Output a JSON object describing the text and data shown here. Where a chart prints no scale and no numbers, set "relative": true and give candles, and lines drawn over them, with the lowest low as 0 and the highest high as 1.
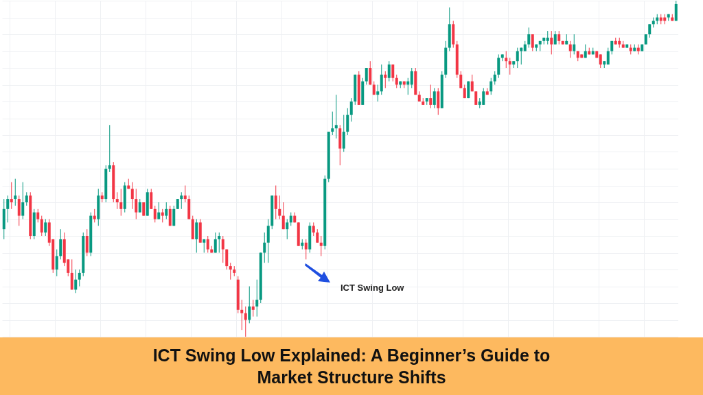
{
  "chart_data": {
    "type": "candlestick",
    "title": "ICT Swing Low Explained: A Beginner’s Guide to Market Structure Shifts",
    "relative": true,
    "grid": true,
    "tick_labels": false,
    "annotations": [
      "ICT Swing Low"
    ],
    "categories": [
      null,
      null,
      null,
      null,
      null,
      null,
      null,
      null,
      null,
      null,
      null,
      null,
      null,
      null,
      null,
      null,
      null,
      null,
      null,
      null,
      null,
      null,
      null,
      null,
      null,
      null,
      null,
      null,
      null,
      null,
      null,
      null,
      null,
      null,
      null,
      null,
      null,
      null,
      null,
      null,
      null,
      null,
      null,
      null,
      null,
      null,
      null,
      null,
      null,
      null,
      null,
      null,
      null,
      null,
      null,
      null,
      null,
      null,
      null,
      null,
      null,
      null,
      null,
      null,
      null,
      null,
      null,
      null,
      null,
      null,
      null,
      null,
      null,
      null,
      null,
      null,
      null,
      null,
      null,
      null,
      null,
      null,
      null,
      null,
      null,
      null,
      null,
      null,
      null,
      null,
      null,
      null,
      null,
      null,
      null,
      null,
      null,
      null,
      null,
      null,
      null,
      null,
      null,
      null,
      null,
      null,
      null,
      null,
      null,
      null,
      null,
      null,
      null,
      null,
      null,
      null,
      null,
      null,
      null,
      null,
      null,
      null,
      null,
      null,
      null,
      null,
      null,
      null,
      null,
      null,
      null,
      null,
      null,
      null,
      null,
      null,
      null,
      null,
      null,
      null,
      null,
      null,
      null,
      null,
      null,
      null,
      null,
      null,
      null,
      null,
      null,
      null,
      null,
      null,
      null,
      null,
      null,
      null,
      null,
      null,
      null,
      null,
      null,
      null,
      null,
      null,
      null,
      null,
      null,
      null,
      null,
      null,
      null,
      null,
      null,
      null,
      null,
      null,
      null
    ],
    "ohlc": [
      [
        0.32,
        0.41,
        0.29,
        0.38
      ],
      [
        0.38,
        0.42,
        0.34,
        0.41
      ],
      [
        0.41,
        0.46,
        0.38,
        0.4
      ],
      [
        0.41,
        0.47,
        0.39,
        0.42
      ],
      [
        0.41,
        0.42,
        0.33,
        0.36
      ],
      [
        0.36,
        0.46,
        0.35,
        0.4
      ],
      [
        0.4,
        0.43,
        0.39,
        0.42
      ],
      [
        0.42,
        0.43,
        0.29,
        0.3
      ],
      [
        0.3,
        0.38,
        0.29,
        0.37
      ],
      [
        0.37,
        0.38,
        0.34,
        0.35
      ],
      [
        0.35,
        0.36,
        0.3,
        0.31
      ],
      [
        0.31,
        0.35,
        0.3,
        0.34
      ],
      [
        0.34,
        0.35,
        0.27,
        0.28
      ],
      [
        0.29,
        0.29,
        0.19,
        0.2
      ],
      [
        0.2,
        0.26,
        0.18,
        0.24
      ],
      [
        0.24,
        0.32,
        0.23,
        0.29
      ],
      [
        0.29,
        0.31,
        0.21,
        0.22
      ],
      [
        0.23,
        0.23,
        0.18,
        0.19
      ],
      [
        0.19,
        0.23,
        0.14,
        0.14
      ],
      [
        0.14,
        0.2,
        0.13,
        0.17
      ],
      [
        0.17,
        0.2,
        0.15,
        0.19
      ],
      [
        0.19,
        0.31,
        0.18,
        0.3
      ],
      [
        0.3,
        0.32,
        0.24,
        0.25
      ],
      [
        0.25,
        0.37,
        0.24,
        0.36
      ],
      [
        0.36,
        0.38,
        0.34,
        0.35
      ],
      [
        0.35,
        0.44,
        0.33,
        0.42
      ],
      [
        0.42,
        0.43,
        0.4,
        0.41
      ],
      [
        0.41,
        0.51,
        0.4,
        0.5
      ],
      [
        0.5,
        0.63,
        0.49,
        0.51
      ],
      [
        0.51,
        0.52,
        0.4,
        0.41
      ],
      [
        0.41,
        0.43,
        0.38,
        0.4
      ],
      [
        0.4,
        0.44,
        0.36,
        0.38
      ],
      [
        0.38,
        0.46,
        0.37,
        0.45
      ],
      [
        0.45,
        0.47,
        0.44,
        0.44
      ],
      [
        0.44,
        0.46,
        0.38,
        0.41
      ],
      [
        0.41,
        0.44,
        0.35,
        0.37
      ],
      [
        0.37,
        0.41,
        0.37,
        0.4
      ],
      [
        0.4,
        0.4,
        0.36,
        0.36
      ],
      [
        0.36,
        0.44,
        0.36,
        0.43
      ],
      [
        0.43,
        0.44,
        0.38,
        0.38
      ],
      [
        0.38,
        0.39,
        0.34,
        0.35
      ],
      [
        0.35,
        0.4,
        0.35,
        0.37
      ],
      [
        0.37,
        0.38,
        0.34,
        0.36
      ],
      [
        0.36,
        0.4,
        0.35,
        0.38
      ],
      [
        0.38,
        0.39,
        0.33,
        0.33
      ],
      [
        0.33,
        0.39,
        0.33,
        0.38
      ],
      [
        0.38,
        0.41,
        0.38,
        0.41
      ],
      [
        0.41,
        0.43,
        0.38,
        0.42
      ],
      [
        0.42,
        0.45,
        0.4,
        0.41
      ],
      [
        0.41,
        0.42,
        0.35,
        0.35
      ],
      [
        0.35,
        0.36,
        0.29,
        0.29
      ],
      [
        0.29,
        0.35,
        0.25,
        0.34
      ],
      [
        0.34,
        0.35,
        0.28,
        0.28
      ],
      [
        0.28,
        0.29,
        0.25,
        0.29
      ],
      [
        0.29,
        0.3,
        0.25,
        0.26
      ],
      [
        0.26,
        0.27,
        0.25,
        0.25
      ],
      [
        0.25,
        0.31,
        0.25,
        0.29
      ],
      [
        0.29,
        0.31,
        0.25,
        0.3
      ],
      [
        0.29,
        0.3,
        0.22,
        0.26
      ],
      [
        0.26,
        0.26,
        0.2,
        0.21
      ],
      [
        0.21,
        0.22,
        0.17,
        0.2
      ],
      [
        0.2,
        0.21,
        0.18,
        0.19
      ],
      [
        0.17,
        0.18,
        0.07,
        0.08
      ],
      [
        0.08,
        0.11,
        0.02,
        0.07
      ],
      [
        0.07,
        0.09,
        0.0,
        0.05
      ],
      [
        0.05,
        0.15,
        0.04,
        0.09
      ],
      [
        0.09,
        0.11,
        0.06,
        0.08
      ],
      [
        0.09,
        0.17,
        0.06,
        0.11
      ],
      [
        0.11,
        0.25,
        0.1,
        0.25
      ],
      [
        0.25,
        0.31,
        0.22,
        0.28
      ],
      [
        0.28,
        0.35,
        0.22,
        0.33
      ],
      [
        0.33,
        0.42,
        0.32,
        0.42
      ],
      [
        0.42,
        0.45,
        0.35,
        0.38
      ],
      [
        0.38,
        0.42,
        0.35,
        0.36
      ],
      [
        0.36,
        0.4,
        0.32,
        0.32
      ],
      [
        0.32,
        0.35,
        0.29,
        0.34
      ],
      [
        0.34,
        0.37,
        0.33,
        0.36
      ],
      [
        0.36,
        0.37,
        0.34,
        0.34
      ],
      [
        0.34,
        0.34,
        0.27,
        0.27
      ],
      [
        0.27,
        0.29,
        0.26,
        0.28
      ],
      [
        0.28,
        0.29,
        0.23,
        0.26
      ],
      [
        0.26,
        0.34,
        0.25,
        0.33
      ],
      [
        0.33,
        0.34,
        0.3,
        0.31
      ],
      [
        0.31,
        0.32,
        0.28,
        0.28
      ],
      [
        0.28,
        0.3,
        0.24,
        0.27
      ],
      [
        0.27,
        0.48,
        0.26,
        0.47
      ],
      [
        0.47,
        0.61,
        0.46,
        0.61
      ],
      [
        0.61,
        0.67,
        0.6,
        0.62
      ],
      [
        0.62,
        0.72,
        0.59,
        0.63
      ],
      [
        0.62,
        0.63,
        0.51,
        0.56
      ],
      [
        0.56,
        0.66,
        0.55,
        0.61
      ],
      [
        0.61,
        0.68,
        0.6,
        0.66
      ],
      [
        0.66,
        0.71,
        0.64,
        0.7
      ],
      [
        0.7,
        0.78,
        0.69,
        0.78
      ],
      [
        0.78,
        0.79,
        0.69,
        0.69
      ],
      [
        0.69,
        0.77,
        0.69,
        0.76
      ],
      [
        0.76,
        0.8,
        0.75,
        0.8
      ],
      [
        0.8,
        0.82,
        0.75,
        0.75
      ],
      [
        0.75,
        0.76,
        0.72,
        0.72
      ],
      [
        0.72,
        0.75,
        0.7,
        0.73
      ],
      [
        0.73,
        0.81,
        0.72,
        0.78
      ],
      [
        0.78,
        0.79,
        0.74,
        0.77
      ],
      [
        0.77,
        0.82,
        0.76,
        0.81
      ],
      [
        0.81,
        0.81,
        0.76,
        0.77
      ],
      [
        0.77,
        0.78,
        0.74,
        0.75
      ],
      [
        0.75,
        0.76,
        0.74,
        0.76
      ],
      [
        0.76,
        0.76,
        0.74,
        0.75
      ],
      [
        0.75,
        0.77,
        0.72,
        0.76
      ],
      [
        0.75,
        0.8,
        0.74,
        0.79
      ],
      [
        0.79,
        0.8,
        0.72,
        0.72
      ],
      [
        0.72,
        0.73,
        0.7,
        0.7
      ],
      [
        0.7,
        0.71,
        0.69,
        0.69
      ],
      [
        0.7,
        0.71,
        0.69,
        0.71
      ],
      [
        0.71,
        0.75,
        0.68,
        0.69
      ],
      [
        0.69,
        0.74,
        0.68,
        0.73
      ],
      [
        0.73,
        0.74,
        0.66,
        0.68
      ],
      [
        0.68,
        0.79,
        0.68,
        0.78
      ],
      [
        0.78,
        0.88,
        0.77,
        0.86
      ],
      [
        0.86,
        0.98,
        0.85,
        0.93
      ],
      [
        0.93,
        0.94,
        0.86,
        0.87
      ],
      [
        0.87,
        0.88,
        0.77,
        0.78
      ],
      [
        0.78,
        0.79,
        0.74,
        0.74
      ],
      [
        0.74,
        0.75,
        0.71,
        0.71
      ],
      [
        0.71,
        0.76,
        0.71,
        0.76
      ],
      [
        0.76,
        0.78,
        0.73,
        0.73
      ],
      [
        0.73,
        0.73,
        0.69,
        0.69
      ],
      [
        0.69,
        0.71,
        0.68,
        0.7
      ],
      [
        0.69,
        0.74,
        0.69,
        0.73
      ],
      [
        0.73,
        0.74,
        0.72,
        0.72
      ],
      [
        0.73,
        0.77,
        0.72,
        0.76
      ],
      [
        0.76,
        0.79,
        0.75,
        0.78
      ],
      [
        0.78,
        0.84,
        0.77,
        0.83
      ],
      [
        0.83,
        0.84,
        0.82,
        0.84
      ],
      [
        0.83,
        0.85,
        0.8,
        0.82
      ],
      [
        0.82,
        0.83,
        0.78,
        0.81
      ],
      [
        0.81,
        0.82,
        0.8,
        0.82
      ],
      [
        0.82,
        0.86,
        0.8,
        0.85
      ],
      [
        0.85,
        0.86,
        0.81,
        0.86
      ],
      [
        0.85,
        0.88,
        0.85,
        0.87
      ],
      [
        0.87,
        0.92,
        0.86,
        0.9
      ],
      [
        0.9,
        0.9,
        0.85,
        0.86
      ],
      [
        0.86,
        0.87,
        0.85,
        0.87
      ],
      [
        0.87,
        0.88,
        0.85,
        0.88
      ],
      [
        0.88,
        0.89,
        0.87,
        0.89
      ],
      [
        0.88,
        0.91,
        0.87,
        0.89
      ],
      [
        0.89,
        0.91,
        0.84,
        0.87
      ],
      [
        0.87,
        0.91,
        0.87,
        0.9
      ],
      [
        0.9,
        0.91,
        0.87,
        0.88
      ],
      [
        0.88,
        0.88,
        0.87,
        0.87
      ],
      [
        0.87,
        0.9,
        0.87,
        0.88
      ],
      [
        0.87,
        0.88,
        0.83,
        0.85
      ],
      [
        0.85,
        0.9,
        0.84,
        0.87
      ],
      [
        0.85,
        0.85,
        0.82,
        0.83
      ],
      [
        0.84,
        0.84,
        0.83,
        0.83
      ],
      [
        0.83,
        0.87,
        0.83,
        0.85
      ],
      [
        0.85,
        0.86,
        0.84,
        0.84
      ],
      [
        0.84,
        0.86,
        0.84,
        0.85
      ],
      [
        0.85,
        0.85,
        0.83,
        0.83
      ],
      [
        0.84,
        0.84,
        0.8,
        0.81
      ],
      [
        0.81,
        0.82,
        0.8,
        0.82
      ],
      [
        0.81,
        0.86,
        0.81,
        0.85
      ],
      [
        0.85,
        0.88,
        0.84,
        0.88
      ],
      [
        0.88,
        0.89,
        0.87,
        0.87
      ],
      [
        0.88,
        0.89,
        0.86,
        0.87
      ],
      [
        0.87,
        0.88,
        0.86,
        0.86
      ],
      [
        0.86,
        0.87,
        0.86,
        0.87
      ],
      [
        0.86,
        0.87,
        0.84,
        0.85
      ],
      [
        0.85,
        0.87,
        0.85,
        0.86
      ],
      [
        0.86,
        0.87,
        0.84,
        0.85
      ],
      [
        0.85,
        0.87,
        0.85,
        0.87
      ],
      [
        0.87,
        0.9,
        0.87,
        0.9
      ],
      [
        0.9,
        0.93,
        0.89,
        0.93
      ],
      [
        0.93,
        0.95,
        0.92,
        0.94
      ],
      [
        0.94,
        0.96,
        0.93,
        0.95
      ],
      [
        0.95,
        0.96,
        0.93,
        0.94
      ],
      [
        0.95,
        0.96,
        0.93,
        0.94
      ],
      [
        0.95,
        0.96,
        0.94,
        0.96
      ],
      [
        0.95,
        0.96,
        0.94,
        0.94
      ],
      [
        0.94,
        1.0,
        0.94,
        0.99
      ]
    ],
    "colors": [
      "#089981",
      "#089981",
      "#f23645",
      "#089981",
      "#f23645",
      "#089981",
      "#089981",
      "#f23645",
      "#089981",
      "#f23645",
      "#f23645",
      "#089981",
      "#f23645",
      "#f23645",
      "#089981",
      "#089981",
      "#f23645",
      "#f23645",
      "#f23645",
      "#089981",
      "#089981",
      "#089981",
      "#f23645",
      "#089981",
      "#f23645",
      "#089981",
      "#f23645",
      "#089981",
      "#089981",
      "#f23645",
      "#f23645",
      "#f23645",
      "#089981",
      "#f23645",
      "#f23645",
      "#f23645",
      "#089981",
      "#f23645",
      "#089981",
      "#f23645",
      "#f23645",
      "#089981",
      "#f23645",
      "#089981",
      "#f23645",
      "#089981",
      "#089981",
      "#089981",
      "#f23645",
      "#f23645",
      "#f23645",
      "#089981",
      "#f23645",
      "#089981",
      "#f23645",
      "#f23645",
      "#089981",
      "#089981",
      "#f23645",
      "#f23645",
      "#f23645",
      "#f23645",
      "#f23645",
      "#f23645",
      "#f23645",
      "#089981",
      "#f23645",
      "#089981",
      "#089981",
      "#089981",
      "#089981",
      "#089981",
      "#f23645",
      "#f23645",
      "#f23645",
      "#089981",
      "#089981",
      "#f23645",
      "#f23645",
      "#089981",
      "#f23645",
      "#089981",
      "#f23645",
      "#f23645",
      "#f23645",
      "#089981",
      "#089981",
      "#089981",
      "#089981",
      "#f23645",
      "#089981",
      "#089981",
      "#089981",
      "#089981",
      "#f23645",
      "#089981",
      "#089981",
      "#f23645",
      "#f23645",
      "#089981",
      "#089981",
      "#f23645",
      "#089981",
      "#f23645",
      "#f23645",
      "#089981",
      "#f23645",
      "#089981",
      "#089981",
      "#f23645",
      "#f23645",
      "#f23645",
      "#089981",
      "#f23645",
      "#089981",
      "#f23645",
      "#089981",
      "#089981",
      "#089981",
      "#f23645",
      "#f23645",
      "#f23645",
      "#f23645",
      "#089981",
      "#f23645",
      "#f23645",
      "#089981",
      "#089981",
      "#f23645",
      "#089981",
      "#089981",
      "#089981",
      "#089981",
      "#f23645",
      "#f23645",
      "#089981",
      "#089981",
      "#089981",
      "#089981",
      "#089981",
      "#f23645",
      "#089981",
      "#089981",
      "#089981",
      "#089981",
      "#f23645",
      "#089981",
      "#f23645",
      "#f23645",
      "#089981",
      "#f23645",
      "#089981",
      "#f23645",
      "#f23645",
      "#089981",
      "#f23645",
      "#089981",
      "#f23645",
      "#f23645",
      "#089981",
      "#089981",
      "#089981",
      "#f23645",
      "#f23645",
      "#f23645",
      "#089981",
      "#f23645",
      "#089981",
      "#f23645",
      "#089981",
      "#089981",
      "#089981",
      "#089981",
      "#089981",
      "#f23645",
      "#f23645",
      "#089981",
      "#f23645",
      "#089981"
    ]
  }
}
